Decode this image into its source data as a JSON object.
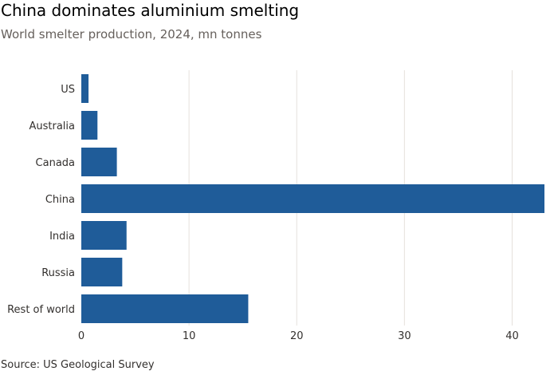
{
  "chart_data": {
    "type": "bar",
    "orientation": "horizontal",
    "title": "China dominates aluminium smelting",
    "subtitle": "World smelter production, 2024, mn tonnes",
    "xlabel": "",
    "ylabel": "",
    "categories": [
      "US",
      "Australia",
      "Canada",
      "China",
      "India",
      "Russia",
      "Rest of world"
    ],
    "values": [
      0.67,
      1.5,
      3.3,
      43,
      4.2,
      3.8,
      15.5
    ],
    "xlim": [
      0,
      43
    ],
    "xticks": [
      0,
      10,
      20,
      30,
      40
    ],
    "grid": true,
    "bar_color": "#1f5c99",
    "source": "Source: US Geological Survey"
  }
}
